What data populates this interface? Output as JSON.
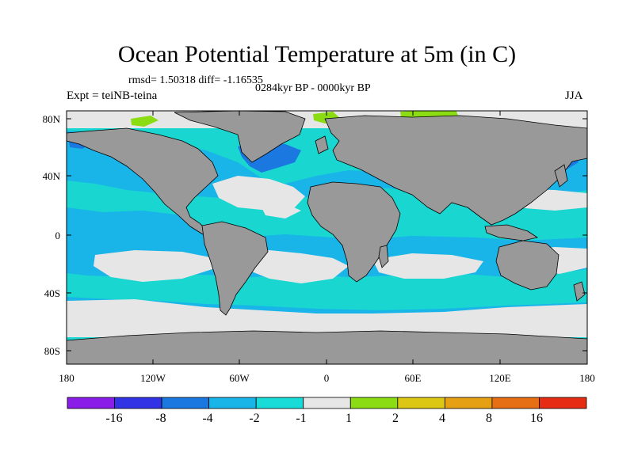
{
  "title": "Ocean Potential Temperature at 5m (in C)",
  "stats": "rmsd= 1.50318 diff= -1.16535",
  "period": "0284kyr BP - 0000kyr BP",
  "experiment": "Expt = teiNB-teina",
  "season": "JJA",
  "lat_labels": [
    "80N",
    "40N",
    "0",
    "40S",
    "80S"
  ],
  "lon_labels": [
    "180",
    "120W",
    "60W",
    "0",
    "60E",
    "120E",
    "180"
  ],
  "colorbar": {
    "labels": [
      "-16",
      "-8",
      "-4",
      "-2",
      "-1",
      "1",
      "2",
      "4",
      "8",
      "16"
    ],
    "colors": [
      "#8a1ee8",
      "#3333e6",
      "#1a78e0",
      "#19b4e8",
      "#19dcd8",
      "#e6e6e6",
      "#8cdc14",
      "#dcc814",
      "#e6a014",
      "#e66e14",
      "#e62d14"
    ]
  },
  "map_colors": {
    "ocean_base": "#19d6d0",
    "ocean_band": "#19b4e8",
    "ocean_deep": "#1a78e0",
    "neutral": "#e6e6e6",
    "warm": "#8cdc14",
    "land": "#999999"
  }
}
